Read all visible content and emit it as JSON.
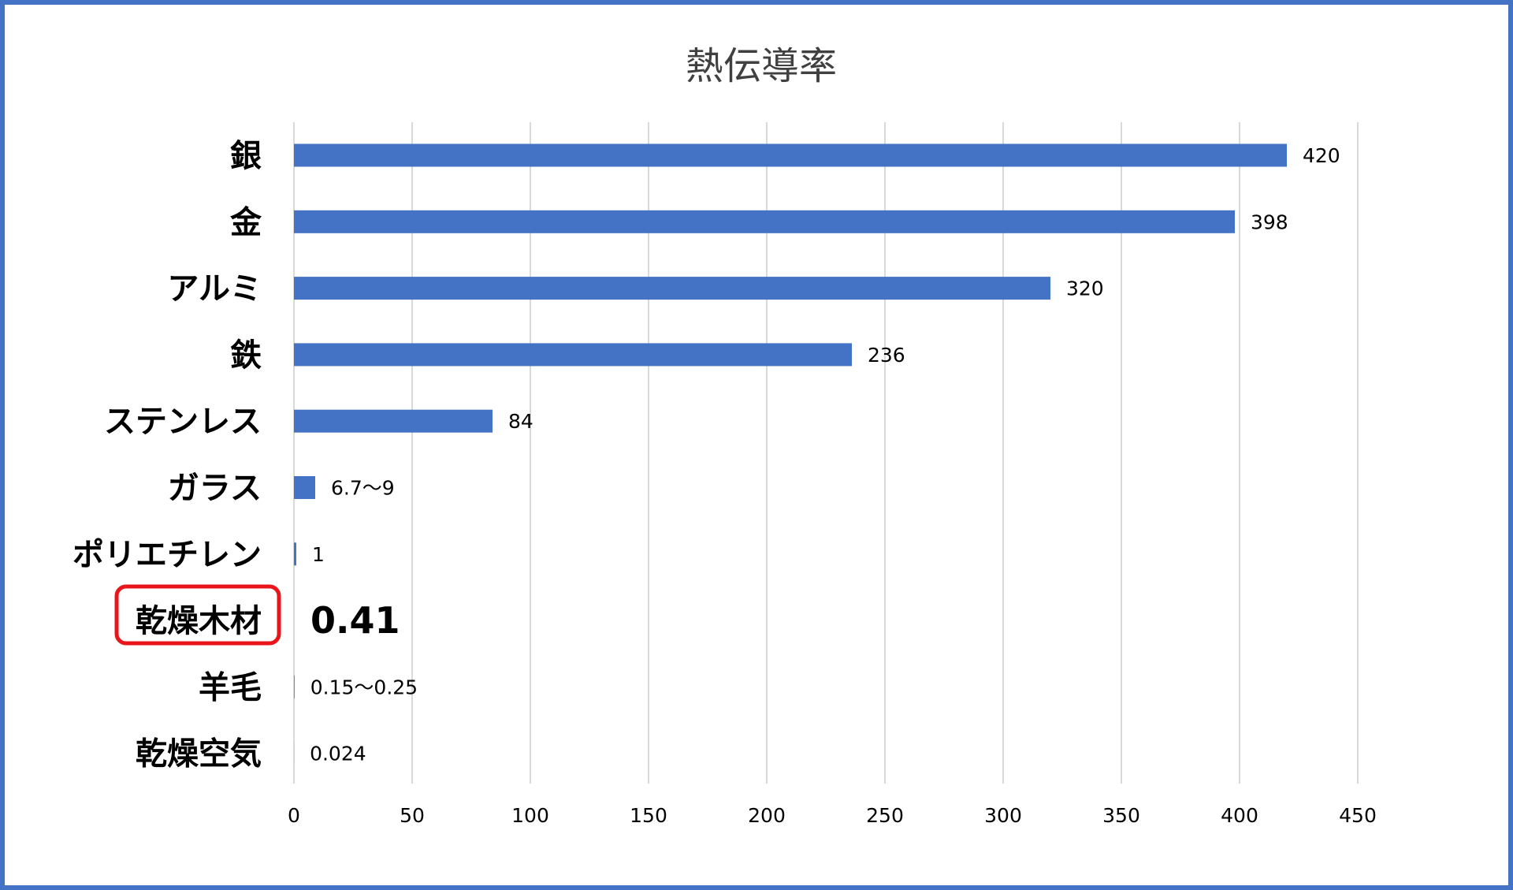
{
  "chart_data": {
    "type": "bar",
    "orientation": "horizontal",
    "title": "熱伝導率",
    "categories": [
      "銀",
      "金",
      "アルミ",
      "鉄",
      "ステンレス",
      "ガラス",
      "ポリエチレン",
      "乾燥木材",
      "羊毛",
      "乾燥空気"
    ],
    "values": [
      420,
      398,
      320,
      236,
      84,
      9,
      1,
      0.41,
      0.25,
      0.024
    ],
    "data_labels": [
      "420",
      "398",
      "320",
      "236",
      "84",
      "6.7～9",
      "1",
      "0.41",
      "0.15～0.25",
      "0.024"
    ],
    "xlim": [
      0,
      450
    ],
    "x_ticks": [
      "0",
      "50",
      "100",
      "150",
      "200",
      "250",
      "300",
      "350",
      "400",
      "450"
    ],
    "grid": "vertical",
    "legend": "none",
    "highlight_category": "乾燥木材",
    "colors": {
      "bar": "#4472C4",
      "frame": "#4472C4",
      "gridline": "#D9D9D9",
      "highlight": "#E8161B",
      "title": "#404040"
    }
  }
}
